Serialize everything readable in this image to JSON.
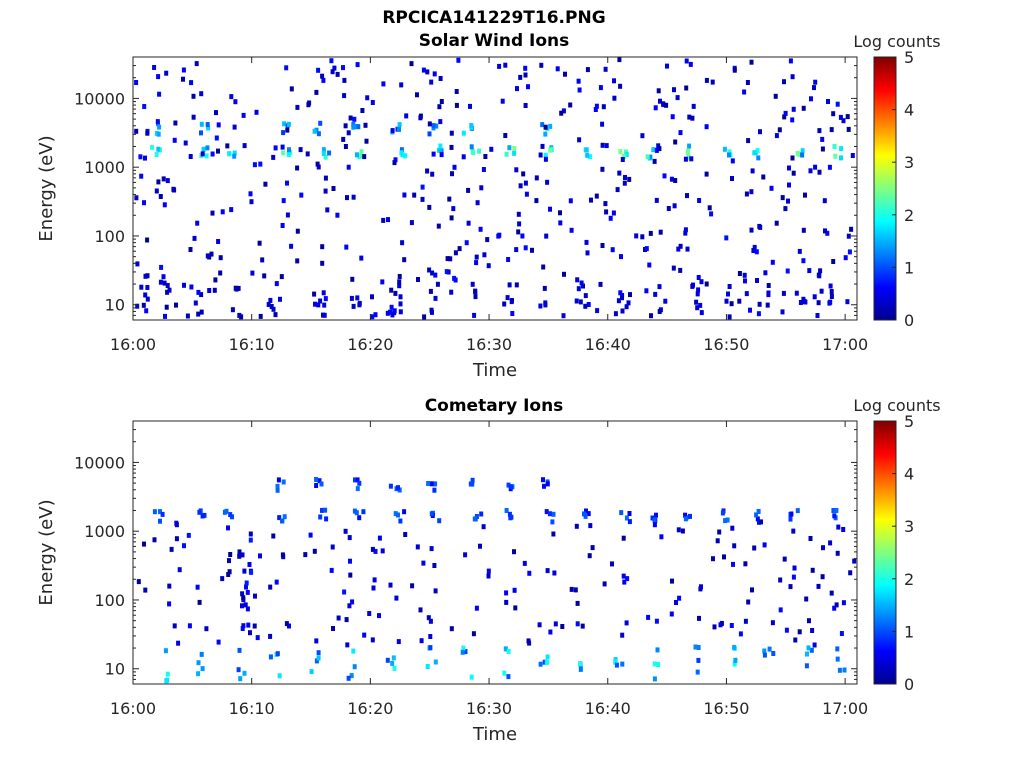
{
  "figure_title": "RPCICA141229T16.PNG",
  "chart_data": [
    {
      "type": "heatmap",
      "title": "Solar Wind Ions",
      "xlabel": "Time",
      "ylabel": "Energy (eV)",
      "x_tick_labels": [
        "16:00",
        "16:10",
        "16:20",
        "16:30",
        "16:40",
        "16:50",
        "17:00"
      ],
      "y_tick_labels": [
        "10",
        "100",
        "1000",
        "10000"
      ],
      "y_scale": "log",
      "ylim": [
        6,
        40000
      ],
      "xlim_minutes": [
        0,
        61
      ],
      "colorbar": {
        "label": "Log counts",
        "ticks": [
          "0",
          "1",
          "2",
          "3",
          "4",
          "5"
        ],
        "range": [
          0,
          5
        ],
        "colormap": "jet"
      },
      "features": [
        {
          "description_band": "main solar wind peak",
          "energy_eV": 1800,
          "log_counts_peak": 2.5,
          "times_min": [
            1.7,
            5.8,
            8.1,
            12.7,
            16.0,
            19.1,
            22.4,
            25.5,
            28.7,
            31.7,
            35.0,
            38.2,
            41.2,
            43.5,
            46.8,
            49.9,
            52.3,
            55.9,
            59.1
          ]
        },
        {
          "description_band": "secondary peak",
          "energy_eV": 4000,
          "log_counts_peak": 1.8,
          "times_min": [
            1.8,
            5.8,
            12.7,
            15.5,
            18.7,
            21.9,
            25.0,
            28.1,
            34.6
          ]
        },
        {
          "description_band": "low energy bursts",
          "energy_eV": 12,
          "log_counts_peak": 0.5,
          "times_min": [
            2.8,
            5.5,
            8.8,
            11.9,
            15.6,
            18.7,
            22.0,
            25.2,
            28.5,
            31.5,
            34.5,
            37.9,
            40.8,
            44.0,
            47.2,
            50.1,
            53.0,
            56.0,
            58.9
          ]
        }
      ]
    },
    {
      "type": "heatmap",
      "title": "Cometary Ions",
      "xlabel": "Time",
      "ylabel": "Energy (eV)",
      "x_tick_labels": [
        "16:00",
        "16:10",
        "16:20",
        "16:30",
        "16:40",
        "16:50",
        "17:00"
      ],
      "y_tick_labels": [
        "10",
        "100",
        "1000",
        "10000"
      ],
      "y_scale": "log",
      "ylim": [
        6,
        40000
      ],
      "xlim_minutes": [
        0,
        61
      ],
      "colorbar": {
        "label": "Log counts",
        "ticks": [
          "0",
          "1",
          "2",
          "3",
          "4",
          "5"
        ],
        "range": [
          0,
          5
        ],
        "colormap": "jet"
      },
      "features": [
        {
          "description_band": "low energy columns",
          "energy_eV": 12,
          "log_counts_peak": 2.0,
          "times_min": [
            2.4,
            5.6,
            8.9,
            11.8,
            15.1,
            18.3,
            21.5,
            25.0,
            28.0,
            31.3,
            34.5,
            37.8,
            40.8,
            44.0,
            47.1,
            50.3,
            53.4,
            56.7,
            59.5
          ]
        },
        {
          "description_band": "1800 eV band",
          "energy_eV": 1800,
          "log_counts_peak": 1.2,
          "times_min": [
            2.0,
            5.8,
            7.9,
            12.5,
            15.8,
            18.9,
            22.3,
            25.3,
            28.8,
            31.7,
            34.9,
            38.0,
            41.3,
            43.7,
            46.6,
            49.9,
            52.2,
            55.6,
            58.9
          ]
        },
        {
          "description_band": "upper bands",
          "energy_eV": 5000,
          "log_counts_peak": 1.2,
          "times_min": [
            12.4,
            15.5,
            18.7,
            21.9,
            25.0,
            28.3,
            31.6,
            34.7
          ]
        },
        {
          "description_band": "vertical streak",
          "energy_eV": 300,
          "log_counts_peak": 0.8,
          "times_min": [
            9.4
          ]
        }
      ]
    }
  ]
}
